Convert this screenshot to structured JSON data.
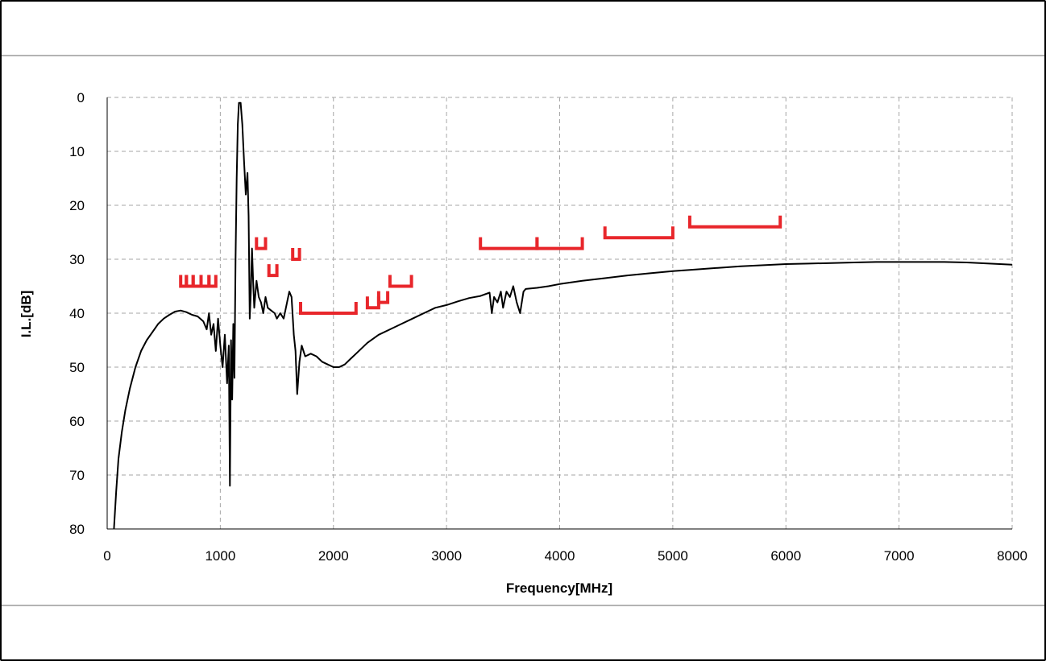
{
  "chart_data": {
    "type": "line",
    "title": "",
    "xlabel": "Frequency[MHz]",
    "ylabel": "I.L.[dB]",
    "xlim": [
      0,
      8000
    ],
    "ylim": [
      0,
      80
    ],
    "y_inverted": true,
    "x_ticks": [
      0,
      1000,
      2000,
      3000,
      4000,
      5000,
      6000,
      7000,
      8000
    ],
    "y_ticks": [
      0,
      10,
      20,
      30,
      40,
      50,
      60,
      70,
      80
    ],
    "x_tick_labels": [
      "0",
      "1000",
      "2000",
      "3000",
      "4000",
      "5000",
      "6000",
      "7000",
      "8000"
    ],
    "y_tick_labels": [
      "0",
      "10",
      "20",
      "30",
      "40",
      "50",
      "60",
      "70",
      "80"
    ],
    "grid": true,
    "grid_style": "dashed",
    "series": [
      {
        "color": "#000000",
        "points": [
          [
            60,
            80
          ],
          [
            80,
            73
          ],
          [
            100,
            67
          ],
          [
            130,
            62
          ],
          [
            160,
            58
          ],
          [
            200,
            54
          ],
          [
            250,
            50
          ],
          [
            300,
            47
          ],
          [
            350,
            45
          ],
          [
            400,
            43.5
          ],
          [
            450,
            42
          ],
          [
            500,
            41
          ],
          [
            550,
            40.3
          ],
          [
            600,
            39.7
          ],
          [
            650,
            39.5
          ],
          [
            700,
            39.8
          ],
          [
            750,
            40.3
          ],
          [
            800,
            40.6
          ],
          [
            850,
            41.5
          ],
          [
            880,
            43
          ],
          [
            900,
            40
          ],
          [
            920,
            44
          ],
          [
            940,
            42
          ],
          [
            960,
            47
          ],
          [
            980,
            41
          ],
          [
            1000,
            46
          ],
          [
            1020,
            50
          ],
          [
            1040,
            44
          ],
          [
            1060,
            53
          ],
          [
            1075,
            46
          ],
          [
            1085,
            72
          ],
          [
            1095,
            45
          ],
          [
            1105,
            56
          ],
          [
            1115,
            42
          ],
          [
            1125,
            52
          ],
          [
            1135,
            30
          ],
          [
            1145,
            15
          ],
          [
            1155,
            5
          ],
          [
            1165,
            1
          ],
          [
            1180,
            1
          ],
          [
            1195,
            5
          ],
          [
            1210,
            12
          ],
          [
            1225,
            18
          ],
          [
            1240,
            14
          ],
          [
            1250,
            22
          ],
          [
            1260,
            41
          ],
          [
            1270,
            36
          ],
          [
            1280,
            28
          ],
          [
            1290,
            34
          ],
          [
            1300,
            39
          ],
          [
            1320,
            34
          ],
          [
            1340,
            37
          ],
          [
            1360,
            38
          ],
          [
            1380,
            40
          ],
          [
            1400,
            37
          ],
          [
            1420,
            39
          ],
          [
            1450,
            39.5
          ],
          [
            1480,
            40
          ],
          [
            1500,
            41
          ],
          [
            1530,
            40
          ],
          [
            1560,
            41
          ],
          [
            1590,
            38
          ],
          [
            1610,
            36
          ],
          [
            1630,
            37
          ],
          [
            1650,
            44
          ],
          [
            1665,
            47
          ],
          [
            1680,
            55
          ],
          [
            1700,
            49
          ],
          [
            1720,
            46
          ],
          [
            1750,
            48
          ],
          [
            1800,
            47.5
          ],
          [
            1850,
            48
          ],
          [
            1900,
            49
          ],
          [
            1950,
            49.5
          ],
          [
            2000,
            50
          ],
          [
            2050,
            50
          ],
          [
            2100,
            49.5
          ],
          [
            2150,
            48.5
          ],
          [
            2200,
            47.5
          ],
          [
            2300,
            45.5
          ],
          [
            2400,
            44
          ],
          [
            2500,
            43
          ],
          [
            2600,
            42
          ],
          [
            2700,
            41
          ],
          [
            2800,
            40
          ],
          [
            2900,
            39
          ],
          [
            3000,
            38.5
          ],
          [
            3100,
            37.8
          ],
          [
            3200,
            37.2
          ],
          [
            3300,
            36.8
          ],
          [
            3380,
            36.2
          ],
          [
            3400,
            40
          ],
          [
            3420,
            37
          ],
          [
            3450,
            38
          ],
          [
            3480,
            36
          ],
          [
            3500,
            39
          ],
          [
            3530,
            36
          ],
          [
            3560,
            37
          ],
          [
            3590,
            35
          ],
          [
            3620,
            38
          ],
          [
            3650,
            40
          ],
          [
            3680,
            36
          ],
          [
            3700,
            35.5
          ],
          [
            3800,
            35.3
          ],
          [
            3900,
            35
          ],
          [
            4000,
            34.6
          ],
          [
            4200,
            34
          ],
          [
            4400,
            33.5
          ],
          [
            4600,
            33
          ],
          [
            4800,
            32.6
          ],
          [
            5000,
            32.2
          ],
          [
            5200,
            31.9
          ],
          [
            5400,
            31.6
          ],
          [
            5600,
            31.3
          ],
          [
            5800,
            31.1
          ],
          [
            6000,
            30.9
          ],
          [
            6200,
            30.8
          ],
          [
            6400,
            30.7
          ],
          [
            6600,
            30.6
          ],
          [
            6800,
            30.5
          ],
          [
            7000,
            30.5
          ],
          [
            7200,
            30.5
          ],
          [
            7400,
            30.5
          ],
          [
            7600,
            30.6
          ],
          [
            7800,
            30.8
          ],
          [
            8000,
            31
          ]
        ]
      }
    ],
    "limit_markers": {
      "color": "#e8262b",
      "segments": [
        [
          650,
          700,
          35
        ],
        [
          700,
          760,
          35
        ],
        [
          760,
          830,
          35
        ],
        [
          830,
          900,
          35
        ],
        [
          900,
          960,
          35
        ],
        [
          1320,
          1400,
          28
        ],
        [
          1430,
          1500,
          33
        ],
        [
          1640,
          1700,
          30
        ],
        [
          1710,
          2200,
          40
        ],
        [
          2300,
          2400,
          39
        ],
        [
          2400,
          2480,
          38
        ],
        [
          2500,
          2690,
          35
        ],
        [
          3300,
          3800,
          28
        ],
        [
          3800,
          4200,
          28
        ],
        [
          4400,
          5000,
          26
        ],
        [
          5150,
          5950,
          24
        ]
      ]
    }
  }
}
